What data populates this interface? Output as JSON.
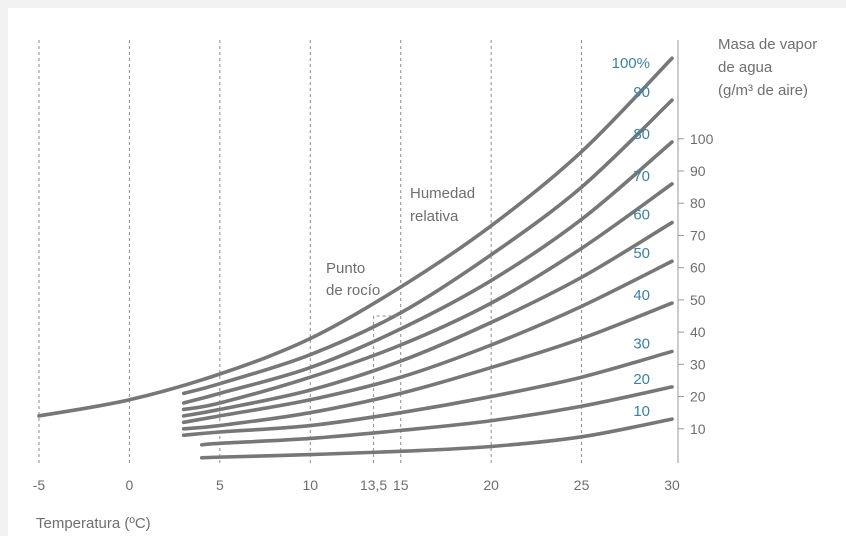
{
  "chart_data": {
    "type": "line",
    "title": "",
    "xlabel": "Temperatura (ºC)",
    "ylabel": [
      "Masa de vapor",
      "de agua",
      "(g/m³ de aire)"
    ],
    "xlim": [
      -5,
      30
    ],
    "ylim": [
      0,
      110
    ],
    "x_ticks": [
      {
        "value": -5,
        "label": "-5"
      },
      {
        "value": 0,
        "label": "0"
      },
      {
        "value": 5,
        "label": "5"
      },
      {
        "value": 10,
        "label": "10"
      },
      {
        "value": 13.5,
        "label": "13,5"
      },
      {
        "value": 15,
        "label": "15"
      },
      {
        "value": 20,
        "label": "20"
      },
      {
        "value": 25,
        "label": "25"
      },
      {
        "value": 30,
        "label": "30"
      }
    ],
    "y_ticks": [
      10,
      20,
      30,
      40,
      50,
      60,
      70,
      80,
      90,
      100
    ],
    "grid_x": [
      -5,
      0,
      5,
      10,
      15,
      20,
      25
    ],
    "annotations": [
      {
        "text": [
          "Punto",
          "de rocío"
        ],
        "x": 13.5,
        "y": 45
      },
      {
        "text": [
          "Humedad",
          "relativa"
        ],
        "x": 15,
        "y": 80
      }
    ],
    "dew_point": {
      "x": 13.5,
      "y": 45,
      "x_ref": 15
    },
    "series": [
      {
        "name": "100%",
        "values": [
          [
            -5,
            14
          ],
          [
            0,
            19
          ],
          [
            5,
            27
          ],
          [
            10,
            38
          ],
          [
            15,
            54
          ],
          [
            20,
            73
          ],
          [
            25,
            96
          ],
          [
            30,
            125
          ]
        ]
      },
      {
        "name": "90",
        "values": [
          [
            3,
            21
          ],
          [
            5,
            24
          ],
          [
            10,
            33
          ],
          [
            15,
            46
          ],
          [
            20,
            64
          ],
          [
            25,
            85
          ],
          [
            30,
            112
          ]
        ]
      },
      {
        "name": "80",
        "values": [
          [
            3,
            18
          ],
          [
            5,
            21
          ],
          [
            10,
            29
          ],
          [
            15,
            41
          ],
          [
            20,
            56
          ],
          [
            25,
            75
          ],
          [
            30,
            99
          ]
        ]
      },
      {
        "name": "70",
        "values": [
          [
            3,
            16
          ],
          [
            5,
            18
          ],
          [
            10,
            26
          ],
          [
            15,
            36
          ],
          [
            20,
            49
          ],
          [
            25,
            66
          ],
          [
            30,
            86
          ]
        ]
      },
      {
        "name": "60",
        "values": [
          [
            3,
            14
          ],
          [
            5,
            16
          ],
          [
            10,
            22
          ],
          [
            15,
            31
          ],
          [
            20,
            43
          ],
          [
            25,
            57
          ],
          [
            30,
            74
          ]
        ]
      },
      {
        "name": "50",
        "values": [
          [
            3,
            12
          ],
          [
            5,
            14
          ],
          [
            10,
            19
          ],
          [
            15,
            26
          ],
          [
            20,
            36
          ],
          [
            25,
            48
          ],
          [
            30,
            62
          ]
        ]
      },
      {
        "name": "40",
        "values": [
          [
            3,
            10
          ],
          [
            5,
            11
          ],
          [
            10,
            15
          ],
          [
            15,
            21
          ],
          [
            20,
            29
          ],
          [
            25,
            38
          ],
          [
            30,
            49
          ]
        ]
      },
      {
        "name": "30",
        "values": [
          [
            3,
            8
          ],
          [
            5,
            9
          ],
          [
            10,
            11
          ],
          [
            15,
            15
          ],
          [
            20,
            20
          ],
          [
            25,
            26
          ],
          [
            30,
            34
          ]
        ]
      },
      {
        "name": "20",
        "values": [
          [
            4,
            5
          ],
          [
            5,
            5.5
          ],
          [
            10,
            7
          ],
          [
            15,
            9.5
          ],
          [
            20,
            12.5
          ],
          [
            25,
            17
          ],
          [
            30,
            23
          ]
        ]
      },
      {
        "name": "10",
        "values": [
          [
            4,
            1
          ],
          [
            5,
            1.2
          ],
          [
            10,
            2
          ],
          [
            15,
            3
          ],
          [
            20,
            4.5
          ],
          [
            25,
            7.5
          ],
          [
            30,
            13
          ]
        ]
      }
    ]
  }
}
